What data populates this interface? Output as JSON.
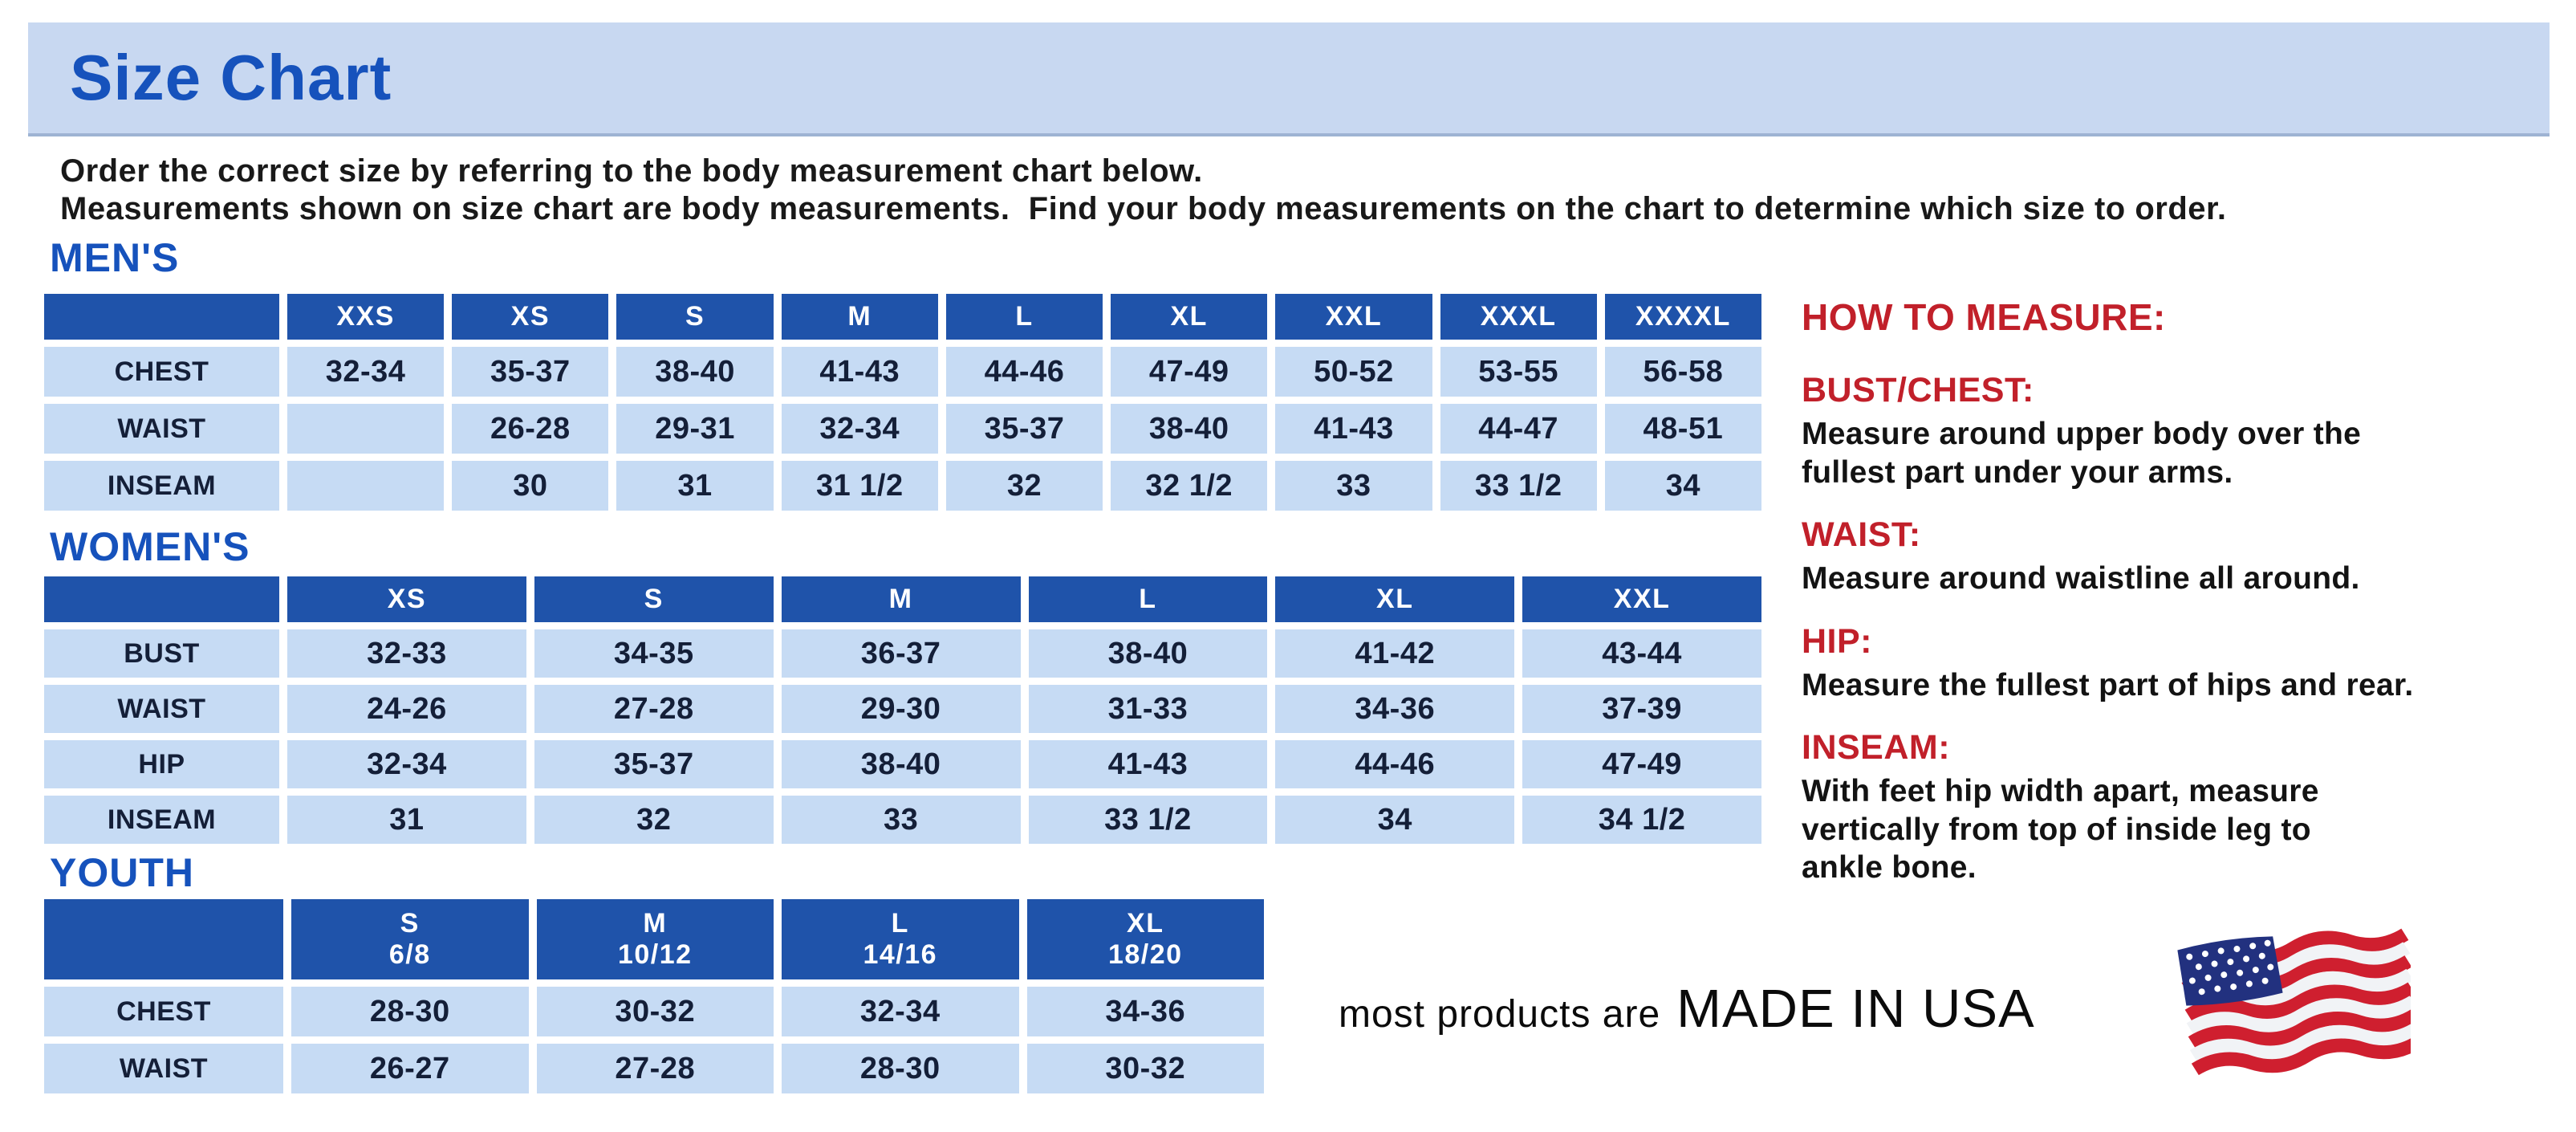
{
  "page": {
    "title": "Size Chart",
    "intro_line1": "Order the correct size by referring to the body measurement chart below.",
    "intro_line2": "Measurements shown on size chart are body measurements.  Find your body measurements on the chart to determine which size to order."
  },
  "colors": {
    "banner_bg": "#c8d8f1",
    "title_blue": "#1652bc",
    "table_header_blue": "#1f53aa",
    "cell_light_blue": "#c6dbf4",
    "cell_text_navy": "#141f38",
    "accent_red": "#c1202a"
  },
  "tables": [
    {
      "id": "men",
      "heading": "MEN'S",
      "columns": [
        "XXS",
        "XS",
        "S",
        "M",
        "L",
        "XL",
        "XXL",
        "XXXL",
        "XXXXL"
      ],
      "rows": [
        {
          "label": "CHEST",
          "values": [
            "32-34",
            "35-37",
            "38-40",
            "41-43",
            "44-46",
            "47-49",
            "50-52",
            "53-55",
            "56-58"
          ]
        },
        {
          "label": "WAIST",
          "values": [
            "",
            "26-28",
            "29-31",
            "32-34",
            "35-37",
            "38-40",
            "41-43",
            "44-47",
            "48-51"
          ]
        },
        {
          "label": "INSEAM",
          "values": [
            "",
            "30",
            "31",
            "31 1/2",
            "32",
            "32 1/2",
            "33",
            "33 1/2",
            "34"
          ]
        }
      ]
    },
    {
      "id": "women",
      "heading": "WOMEN'S",
      "columns": [
        "XS",
        "S",
        "M",
        "L",
        "XL",
        "XXL"
      ],
      "rows": [
        {
          "label": "BUST",
          "values": [
            "32-33",
            "34-35",
            "36-37",
            "38-40",
            "41-42",
            "43-44"
          ]
        },
        {
          "label": "WAIST",
          "values": [
            "24-26",
            "27-28",
            "29-30",
            "31-33",
            "34-36",
            "37-39"
          ]
        },
        {
          "label": "HIP",
          "values": [
            "32-34",
            "35-37",
            "38-40",
            "41-43",
            "44-46",
            "47-49"
          ]
        },
        {
          "label": "INSEAM",
          "values": [
            "31",
            "32",
            "33",
            "33 1/2",
            "34",
            "34 1/2"
          ]
        }
      ]
    },
    {
      "id": "youth",
      "heading": "YOUTH",
      "columns": [
        "S\n6/8",
        "M\n10/12",
        "L\n14/16",
        "XL\n18/20"
      ],
      "rows": [
        {
          "label": "CHEST",
          "values": [
            "28-30",
            "30-32",
            "32-34",
            "34-36"
          ]
        },
        {
          "label": "WAIST",
          "values": [
            "26-27",
            "27-28",
            "28-30",
            "30-32"
          ]
        }
      ]
    }
  ],
  "howto": {
    "title": "HOW TO MEASURE:",
    "sections": [
      {
        "label": "BUST/CHEST:",
        "text": "Measure around upper body over the\nfullest part under your arms."
      },
      {
        "label": "WAIST:",
        "text": "Measure around waistline all around."
      },
      {
        "label": "HIP:",
        "text": "Measure the fullest part of hips and rear."
      },
      {
        "label": "INSEAM:",
        "text": "With feet hip width apart, measure\nvertically from top of inside leg to\nankle bone."
      }
    ]
  },
  "footer": {
    "prefix": "most products are",
    "emphasis": "MADE IN USA",
    "flag_icon": "us-flag-icon"
  }
}
